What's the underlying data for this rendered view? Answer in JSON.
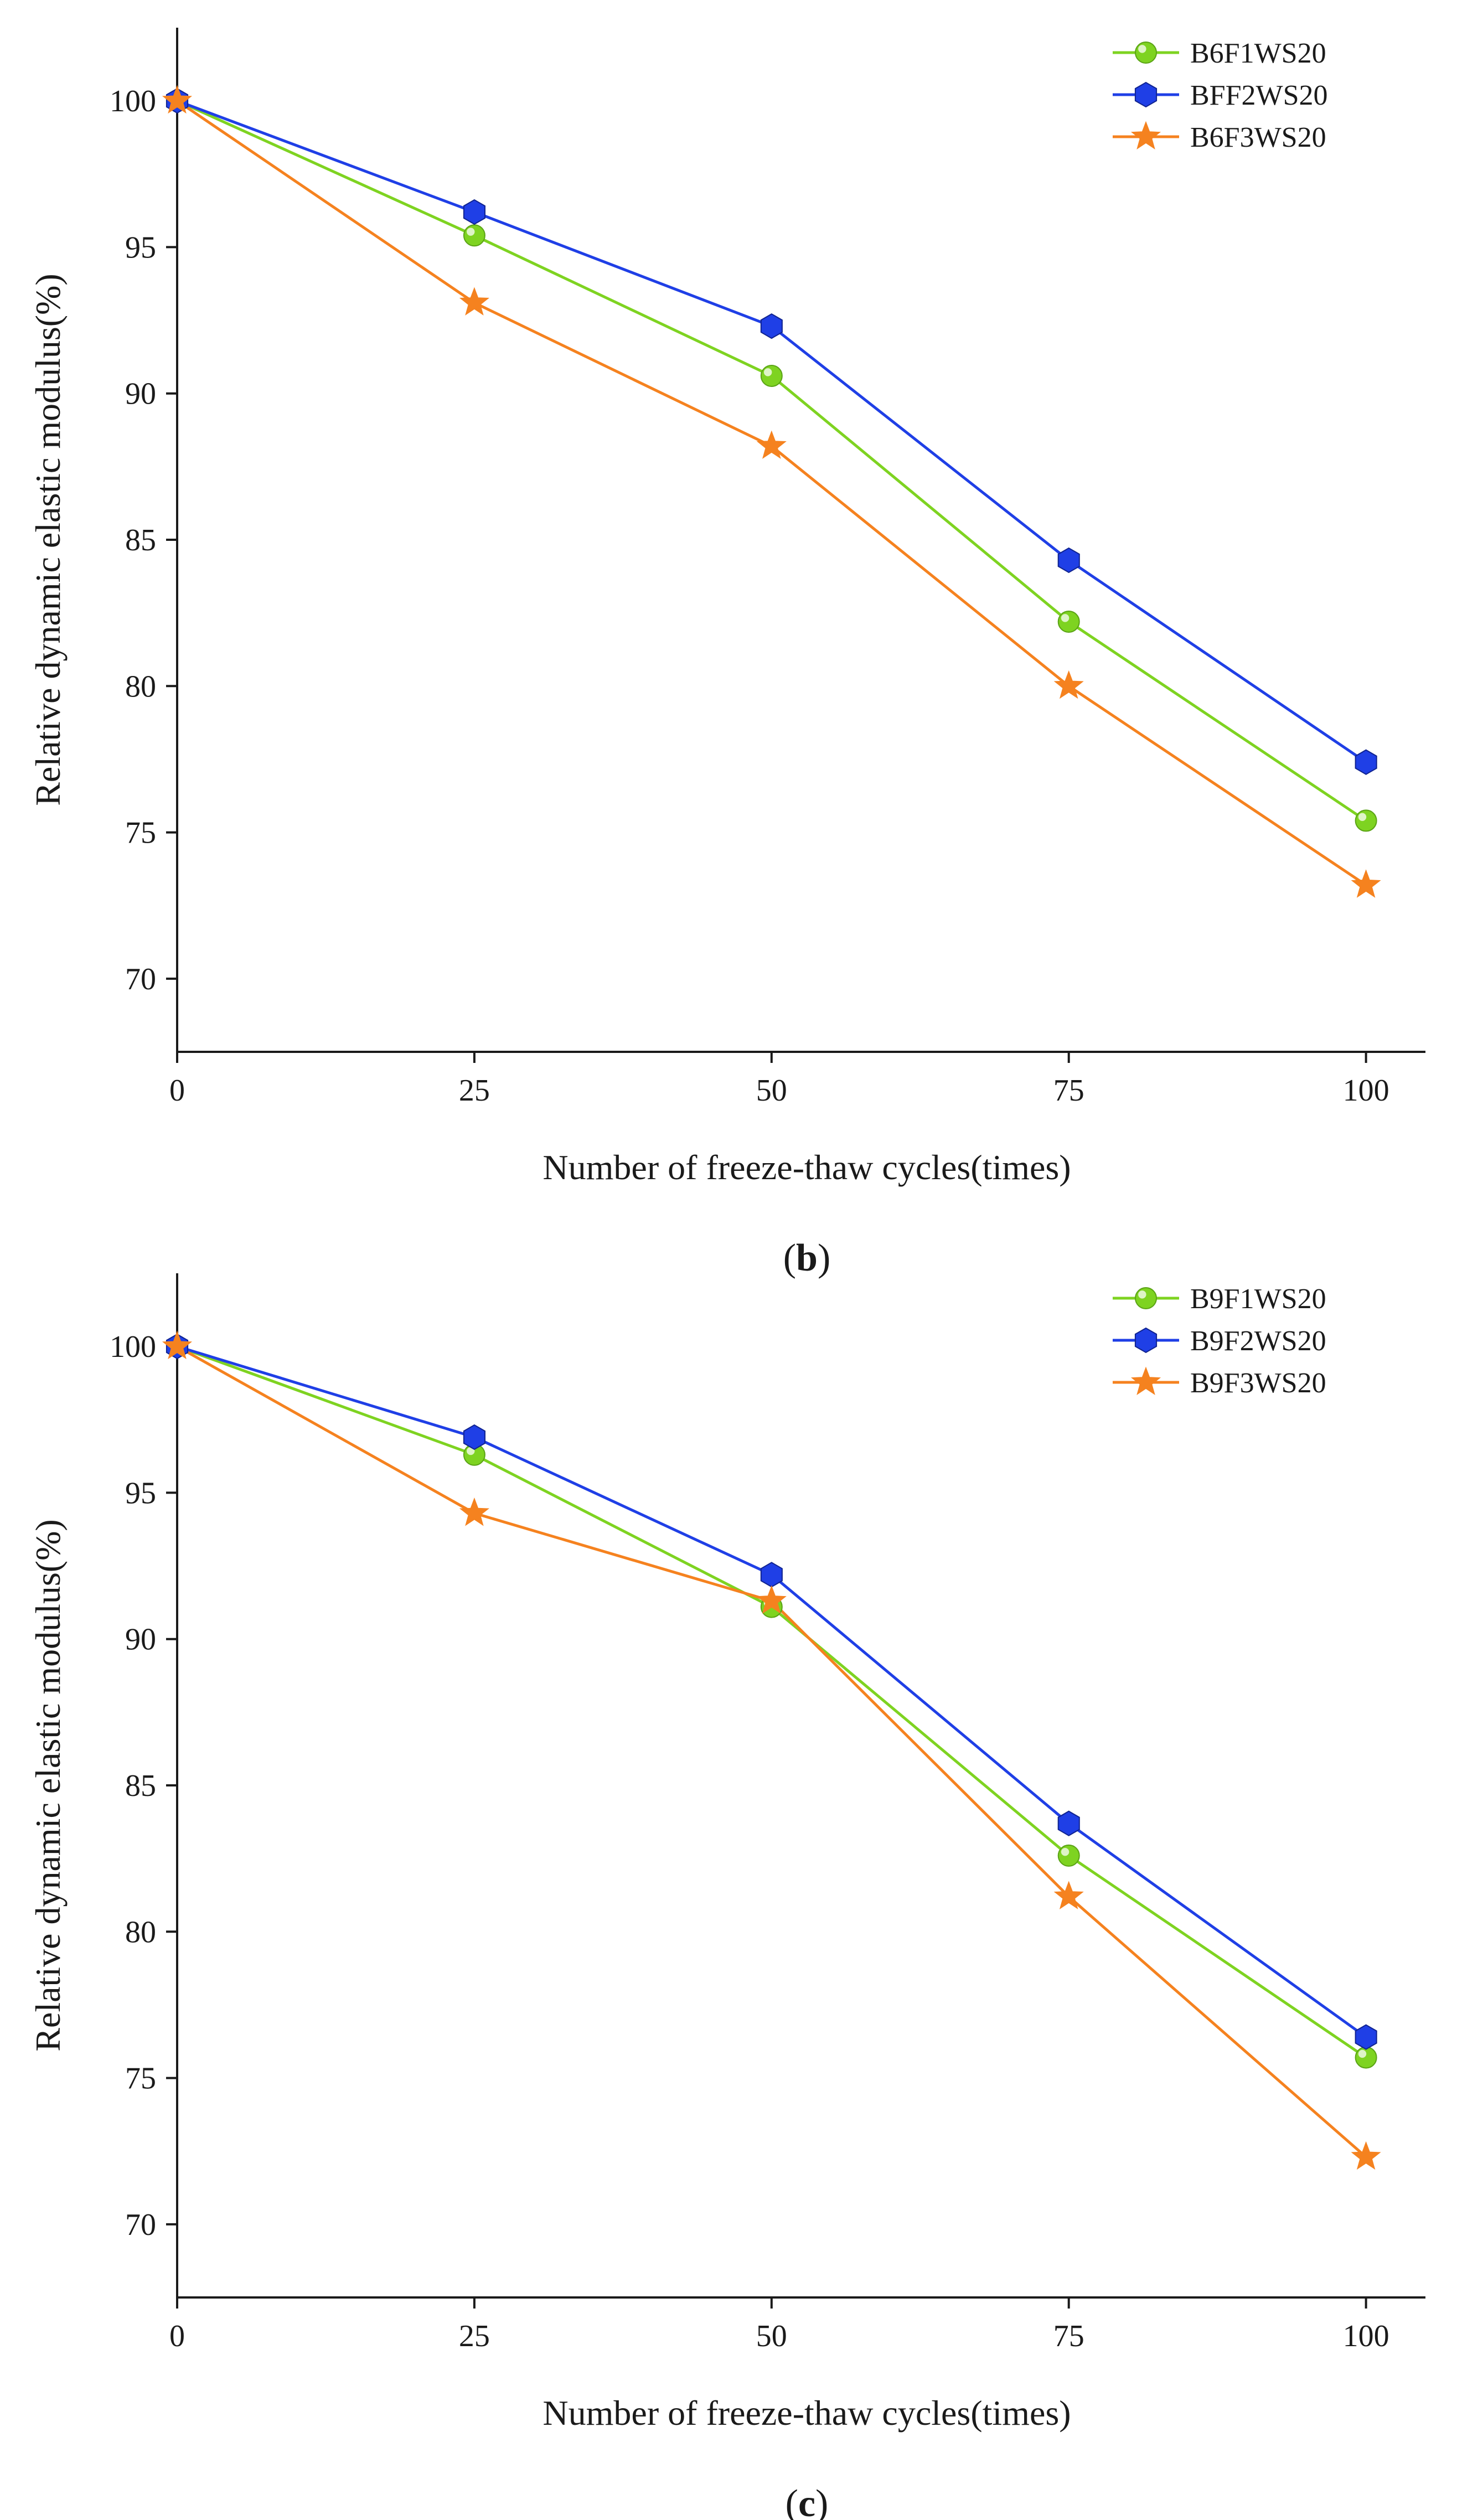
{
  "colors": {
    "green": "#7ed321",
    "blue": "#1f3fe6",
    "orange": "#f5821f",
    "axis": "#1a1a1a"
  },
  "chart_data": [
    {
      "type": "line",
      "panel": "b",
      "caption": "(b)",
      "caption_open": "(",
      "caption_letter": "b",
      "caption_close": ")",
      "title": "",
      "xlabel": "Number of freeze-thaw cycles(times)",
      "ylabel": "Relative dynamic elastic modulus(%)",
      "x": [
        0,
        25,
        50,
        75,
        100
      ],
      "xlim": [
        0,
        105
      ],
      "ylim": [
        67.5,
        102.5
      ],
      "xticks": [
        0,
        25,
        50,
        75,
        100
      ],
      "yticks": [
        70,
        75,
        80,
        85,
        90,
        95,
        100
      ],
      "legend_position": "top-right",
      "grid": false,
      "series": [
        {
          "name": "B6F1WS20",
          "color": "#7ed321",
          "marker": "circle",
          "values": [
            100,
            95.4,
            90.6,
            82.2,
            75.4
          ]
        },
        {
          "name": "BFF2WS20",
          "color": "#1f3fe6",
          "marker": "hexagon",
          "values": [
            100,
            96.2,
            92.3,
            84.3,
            77.4
          ]
        },
        {
          "name": "B6F3WS20",
          "color": "#f5821f",
          "marker": "star",
          "values": [
            100,
            93.1,
            88.2,
            80.0,
            73.2
          ]
        }
      ]
    },
    {
      "type": "line",
      "panel": "c",
      "caption": "(c)",
      "caption_open": "(",
      "caption_letter": "c",
      "caption_close": ")",
      "title": "",
      "xlabel": "Number of freeze-thaw cycles(times)",
      "ylabel": "Relative dynamic elastic modulus(%)",
      "x": [
        0,
        25,
        50,
        75,
        100
      ],
      "xlim": [
        0,
        105
      ],
      "ylim": [
        67.5,
        102.5
      ],
      "xticks": [
        0,
        25,
        50,
        75,
        100
      ],
      "yticks": [
        70,
        75,
        80,
        85,
        90,
        95,
        100
      ],
      "legend_position": "top-right",
      "grid": false,
      "series": [
        {
          "name": "B9F1WS20",
          "color": "#7ed321",
          "marker": "circle",
          "values": [
            100,
            96.3,
            91.1,
            82.6,
            75.7
          ]
        },
        {
          "name": "B9F2WS20",
          "color": "#1f3fe6",
          "marker": "hexagon",
          "values": [
            100,
            96.9,
            92.2,
            83.7,
            76.4
          ]
        },
        {
          "name": "B9F3WS20",
          "color": "#f5821f",
          "marker": "star",
          "values": [
            100,
            94.3,
            91.3,
            81.2,
            72.3
          ]
        }
      ]
    }
  ]
}
